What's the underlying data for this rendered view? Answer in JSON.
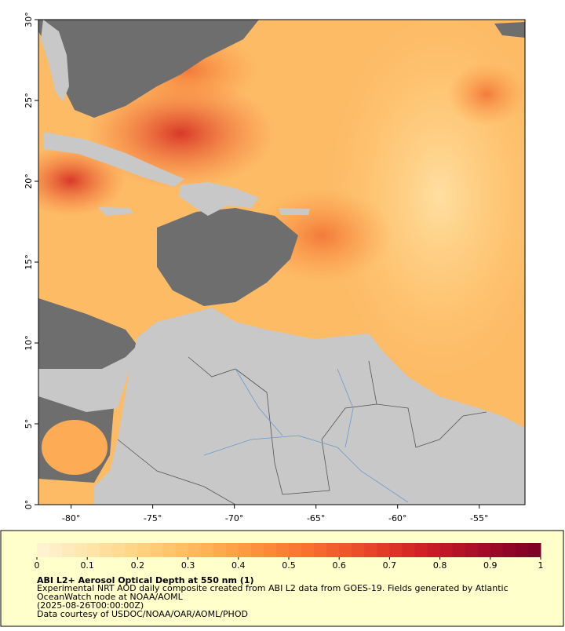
{
  "map": {
    "xlim": [
      -82,
      -52.2
    ],
    "ylim": [
      0,
      30
    ],
    "xticks": [
      {
        "value": -80,
        "label": "-80°"
      },
      {
        "value": -75,
        "label": "-75°"
      },
      {
        "value": -70,
        "label": "-70°"
      },
      {
        "value": -65,
        "label": "-65°"
      },
      {
        "value": -60,
        "label": "-60°"
      },
      {
        "value": -55,
        "label": "-55°"
      }
    ],
    "yticks": [
      {
        "value": 0,
        "label": "0°"
      },
      {
        "value": 5,
        "label": "5°"
      },
      {
        "value": 10,
        "label": "10°"
      },
      {
        "value": 15,
        "label": "15°"
      },
      {
        "value": 20,
        "label": "20°"
      },
      {
        "value": 25,
        "label": "25°"
      },
      {
        "value": 30,
        "label": "30°"
      }
    ]
  },
  "colorbar": {
    "lim": [
      0,
      1
    ],
    "ticks": [
      0,
      0.1,
      0.2,
      0.3,
      0.4,
      0.5,
      0.6,
      0.7,
      0.8,
      0.9,
      1
    ],
    "colors": [
      "#fff4d6",
      "#ffe3a8",
      "#ffcf7a",
      "#ffb356",
      "#fd8e3c",
      "#f86a2e",
      "#e8422a",
      "#cc1c26",
      "#a30b28",
      "#7a0025"
    ]
  },
  "caption": {
    "title": "ABI L2+ Aerosol Optical Depth at 550 nm (1)",
    "lines": [
      "Experimental NRT AOD daily composite created from ABI L2 data from GOES-19. Fields generated by Atlantic",
      "OceanWatch node at NOAA/AOML",
      "(2025-08-26T00:00:00Z)",
      "Data courtesy of USDOC/NOAA/OAR/AOML/PHOD"
    ]
  }
}
